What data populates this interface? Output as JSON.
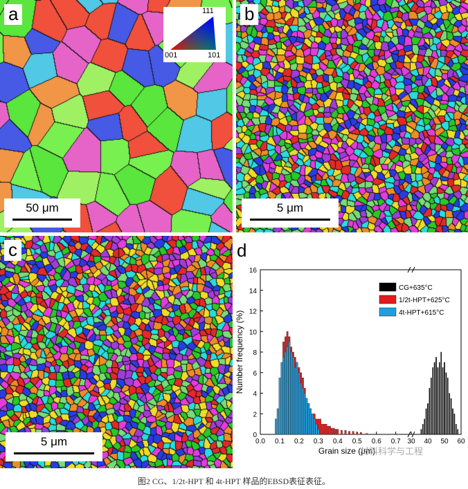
{
  "panels": {
    "a": {
      "letter": "a",
      "scale_label": "50 μm"
    },
    "b": {
      "letter": "b",
      "scale_label": "5 μm"
    },
    "c": {
      "letter": "c",
      "scale_label": "5 μm"
    },
    "d": {
      "letter": "d"
    }
  },
  "ipf_legend": {
    "top": "111",
    "left": "001",
    "right": "101"
  },
  "caption": "图2 CG、1/2t-HPT 和 4t-HPT 样品的EBSD表征表征。",
  "watermark": "材料科学与工程",
  "chart_data": {
    "type": "bar",
    "xlabel": "Grain size (μm)",
    "ylabel": "Number frequency (%)",
    "ylim": [
      0,
      16
    ],
    "yticks": [
      "0",
      "2",
      "4",
      "6",
      "8",
      "10",
      "12",
      "14",
      "16"
    ],
    "x_axis_break": true,
    "xticks_left": [
      "0.0",
      "0.1",
      "0.2",
      "0.3",
      "0.4",
      "0.5",
      "0.6",
      "0.7"
    ],
    "xticks_right": [
      "30",
      "40",
      "50",
      "60"
    ],
    "legend_position": "top-right",
    "series": [
      {
        "name": "CG+635°C",
        "color": "#000000",
        "segment": "right",
        "x": [
          36,
          37,
          38,
          39,
          40,
          41,
          42,
          43,
          44,
          45,
          46,
          47,
          48,
          49,
          50,
          51,
          52,
          53,
          54,
          55,
          56,
          57,
          58
        ],
        "values": [
          0.5,
          1.0,
          1.5,
          2.5,
          3.0,
          4.5,
          5.5,
          6.5,
          7.0,
          7.5,
          6.5,
          7.0,
          8.0,
          6.5,
          7.0,
          6.0,
          5.5,
          4.0,
          3.5,
          2.5,
          2.0,
          1.0,
          0.5
        ]
      },
      {
        "name": "1/2t-HPT+625°C",
        "color": "#e41a1c",
        "segment": "left",
        "x": [
          0.12,
          0.13,
          0.14,
          0.15,
          0.16,
          0.17,
          0.18,
          0.19,
          0.2,
          0.21,
          0.22,
          0.23,
          0.24,
          0.25,
          0.26,
          0.27,
          0.28,
          0.29,
          0.3,
          0.31,
          0.32,
          0.33,
          0.34,
          0.35,
          0.36,
          0.37,
          0.38,
          0.39,
          0.4,
          0.42,
          0.44,
          0.46,
          0.48,
          0.5,
          0.52,
          0.55
        ],
        "values": [
          9.0,
          9.5,
          10.0,
          9.5,
          8.5,
          8.0,
          7.5,
          7.0,
          6.5,
          6.0,
          5.5,
          4.5,
          3.5,
          3.0,
          2.5,
          2.0,
          2.0,
          1.5,
          1.5,
          1.5,
          1.0,
          1.0,
          1.0,
          0.8,
          0.8,
          0.6,
          0.6,
          0.5,
          0.5,
          0.4,
          0.4,
          0.3,
          0.3,
          0.2,
          0.2,
          0.1
        ]
      },
      {
        "name": "4t-HPT+615°C",
        "color": "#1f9fe0",
        "segment": "left",
        "x": [
          0.08,
          0.09,
          0.1,
          0.11,
          0.12,
          0.13,
          0.14,
          0.15,
          0.16,
          0.17,
          0.18,
          0.19,
          0.2,
          0.21,
          0.22,
          0.23,
          0.24,
          0.25,
          0.26,
          0.27,
          0.28,
          0.29,
          0.3
        ],
        "values": [
          1.5,
          2.5,
          5.5,
          7.0,
          7.5,
          8.0,
          8.5,
          9.0,
          8.0,
          7.5,
          6.5,
          7.0,
          6.0,
          5.0,
          4.5,
          4.0,
          3.5,
          3.0,
          2.5,
          2.0,
          1.5,
          1.0,
          0.5
        ]
      }
    ]
  }
}
